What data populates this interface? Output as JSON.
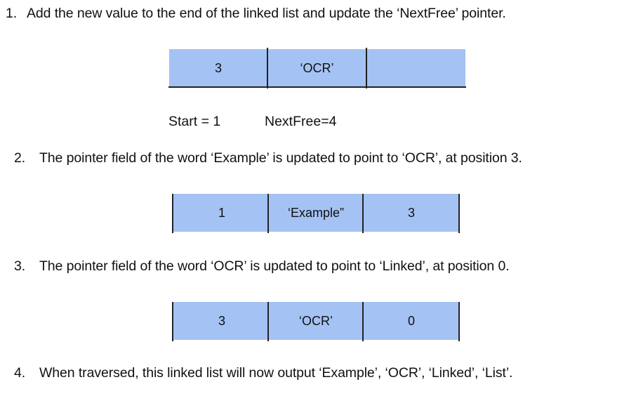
{
  "steps": [
    {
      "number": "1.",
      "text": "Add the new value to the end of the linked list and update the ‘NextFree’ pointer."
    },
    {
      "number": "2.",
      "text": "The pointer field of the word ‘Example’ is updated to point to ‘OCR’, at position 3."
    },
    {
      "number": "3.",
      "text": "The pointer field of the word ‘OCR’  is updated to point to ‘Linked’, at position 0."
    },
    {
      "number": "4.",
      "text": "When traversed, this linked list will now output ‘Example’, ‘OCR’, ‘Linked’, ‘List’."
    }
  ],
  "node1": {
    "cells": [
      "3",
      "‘OCR’",
      ""
    ]
  },
  "pointers": {
    "start": "Start = 1",
    "next_free": "NextFree=4"
  },
  "node2": {
    "cells": [
      "1",
      "‘Example”",
      "3"
    ]
  },
  "node3": {
    "cells": [
      "3",
      "‘OCR’",
      "0"
    ]
  },
  "colors": {
    "cell_fill": "#a4c2f4",
    "border": "#222222",
    "text": "#111111"
  }
}
